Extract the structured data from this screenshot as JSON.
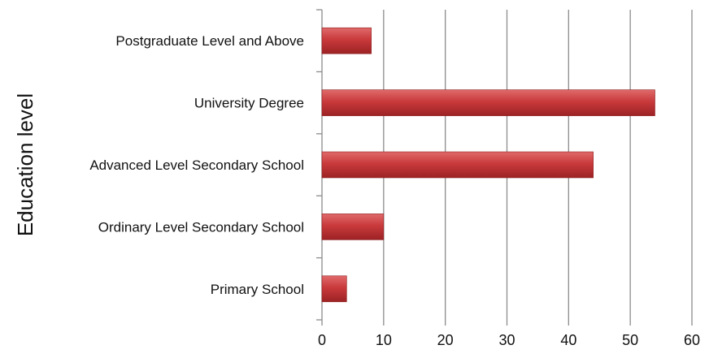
{
  "chart_data": {
    "type": "bar",
    "orientation": "horizontal",
    "categories": [
      "Postgraduate Level and Above",
      "University Degree",
      "Advanced Level Secondary School",
      "Ordinary Level Secondary School",
      "Primary School"
    ],
    "values": [
      8,
      54,
      44,
      10,
      4
    ],
    "xlabel": "",
    "ylabel": "Education level",
    "xlim": [
      0,
      60
    ],
    "xticks": [
      0,
      10,
      20,
      30,
      40,
      50,
      60
    ],
    "grid": "vertical",
    "legend": "none",
    "bar_color": "#c0393b"
  }
}
